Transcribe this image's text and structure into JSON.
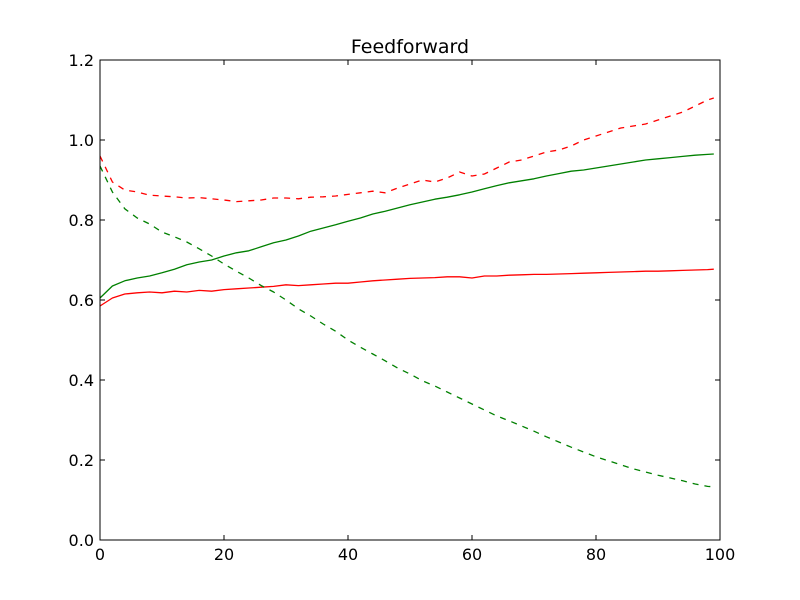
{
  "chart_data": {
    "type": "line",
    "title": "Feedforward",
    "xlabel": "",
    "ylabel": "",
    "xlim": [
      0,
      100
    ],
    "ylim": [
      0.0,
      1.2
    ],
    "x_ticks": [
      0,
      20,
      40,
      60,
      80,
      100
    ],
    "x_tick_labels": [
      "0",
      "20",
      "40",
      "60",
      "80",
      "100"
    ],
    "y_ticks": [
      0.0,
      0.2,
      0.4,
      0.6,
      0.8,
      1.0,
      1.2
    ],
    "y_tick_labels": [
      "0.0",
      "0.2",
      "0.4",
      "0.6",
      "0.8",
      "1.0",
      "1.2"
    ],
    "grid": false,
    "legend": "none",
    "series": [
      {
        "color": "#ff0000",
        "style": "dashed",
        "x": [
          0,
          2,
          4,
          6,
          8,
          10,
          12,
          14,
          16,
          18,
          20,
          22,
          24,
          26,
          28,
          30,
          32,
          34,
          36,
          38,
          40,
          42,
          44,
          46,
          48,
          50,
          52,
          54,
          56,
          58,
          60,
          62,
          64,
          66,
          68,
          70,
          72,
          74,
          76,
          78,
          80,
          82,
          84,
          86,
          88,
          90,
          92,
          94,
          96,
          98,
          99
        ],
        "y": [
          0.96,
          0.895,
          0.875,
          0.87,
          0.862,
          0.86,
          0.858,
          0.855,
          0.856,
          0.853,
          0.85,
          0.846,
          0.848,
          0.85,
          0.855,
          0.855,
          0.853,
          0.857,
          0.858,
          0.86,
          0.864,
          0.868,
          0.872,
          0.868,
          0.88,
          0.89,
          0.9,
          0.895,
          0.905,
          0.92,
          0.91,
          0.915,
          0.93,
          0.945,
          0.95,
          0.96,
          0.97,
          0.975,
          0.985,
          1.0,
          1.01,
          1.02,
          1.03,
          1.035,
          1.04,
          1.05,
          1.06,
          1.07,
          1.085,
          1.1,
          1.105
        ]
      },
      {
        "color": "#008000",
        "style": "solid",
        "x": [
          0,
          2,
          4,
          6,
          8,
          10,
          12,
          14,
          16,
          18,
          20,
          22,
          24,
          26,
          28,
          30,
          32,
          34,
          36,
          38,
          40,
          42,
          44,
          46,
          48,
          50,
          52,
          54,
          56,
          58,
          60,
          62,
          64,
          66,
          68,
          70,
          72,
          74,
          76,
          78,
          80,
          82,
          84,
          86,
          88,
          90,
          92,
          94,
          96,
          98,
          99
        ],
        "y": [
          0.605,
          0.635,
          0.648,
          0.655,
          0.66,
          0.668,
          0.677,
          0.688,
          0.695,
          0.7,
          0.71,
          0.718,
          0.723,
          0.733,
          0.743,
          0.75,
          0.76,
          0.772,
          0.78,
          0.788,
          0.797,
          0.805,
          0.815,
          0.822,
          0.83,
          0.838,
          0.845,
          0.852,
          0.857,
          0.863,
          0.87,
          0.878,
          0.886,
          0.893,
          0.898,
          0.903,
          0.91,
          0.916,
          0.922,
          0.925,
          0.93,
          0.935,
          0.94,
          0.945,
          0.95,
          0.953,
          0.956,
          0.959,
          0.962,
          0.964,
          0.965
        ]
      },
      {
        "color": "#ff0000",
        "style": "solid",
        "x": [
          0,
          2,
          4,
          6,
          8,
          10,
          12,
          14,
          16,
          18,
          20,
          22,
          24,
          26,
          28,
          30,
          32,
          34,
          36,
          38,
          40,
          42,
          44,
          46,
          48,
          50,
          52,
          54,
          56,
          58,
          60,
          62,
          64,
          66,
          68,
          70,
          72,
          74,
          76,
          78,
          80,
          82,
          84,
          86,
          88,
          90,
          92,
          94,
          96,
          98,
          99
        ],
        "y": [
          0.585,
          0.605,
          0.615,
          0.618,
          0.62,
          0.618,
          0.622,
          0.62,
          0.624,
          0.622,
          0.626,
          0.628,
          0.63,
          0.632,
          0.634,
          0.638,
          0.636,
          0.638,
          0.64,
          0.642,
          0.642,
          0.645,
          0.648,
          0.65,
          0.652,
          0.654,
          0.655,
          0.656,
          0.658,
          0.658,
          0.655,
          0.66,
          0.66,
          0.662,
          0.663,
          0.664,
          0.664,
          0.665,
          0.666,
          0.667,
          0.668,
          0.669,
          0.67,
          0.671,
          0.672,
          0.672,
          0.673,
          0.674,
          0.675,
          0.676,
          0.677
        ]
      },
      {
        "color": "#008000",
        "style": "dashed",
        "x": [
          0,
          2,
          4,
          6,
          8,
          10,
          12,
          14,
          16,
          18,
          20,
          22,
          24,
          26,
          28,
          30,
          32,
          34,
          36,
          38,
          40,
          42,
          44,
          46,
          48,
          50,
          52,
          54,
          56,
          58,
          60,
          62,
          64,
          66,
          68,
          70,
          72,
          74,
          76,
          78,
          80,
          82,
          84,
          86,
          88,
          90,
          92,
          94,
          96,
          98,
          99
        ],
        "y": [
          0.935,
          0.87,
          0.828,
          0.805,
          0.79,
          0.77,
          0.758,
          0.745,
          0.728,
          0.71,
          0.69,
          0.672,
          0.655,
          0.636,
          0.62,
          0.6,
          0.578,
          0.56,
          0.54,
          0.522,
          0.5,
          0.482,
          0.465,
          0.448,
          0.43,
          0.415,
          0.398,
          0.385,
          0.37,
          0.355,
          0.34,
          0.325,
          0.31,
          0.298,
          0.285,
          0.272,
          0.258,
          0.245,
          0.232,
          0.22,
          0.208,
          0.198,
          0.188,
          0.178,
          0.17,
          0.162,
          0.155,
          0.148,
          0.14,
          0.134,
          0.133
        ]
      }
    ]
  }
}
